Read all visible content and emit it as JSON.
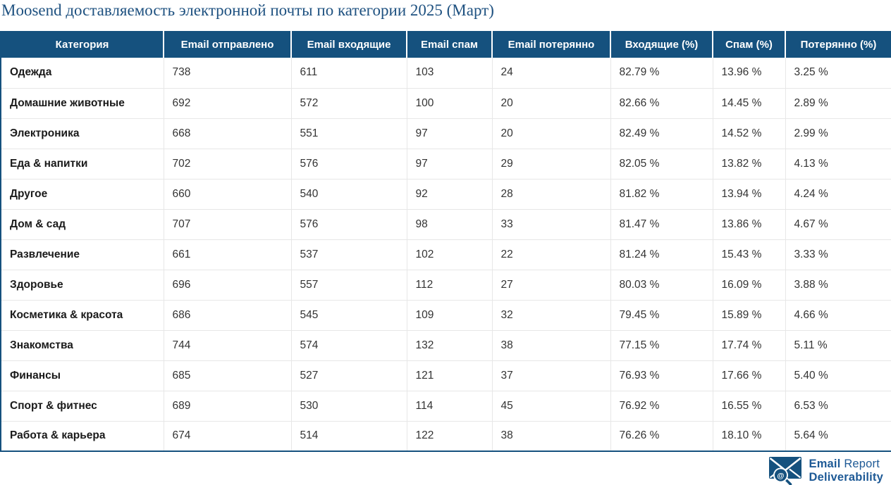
{
  "chart_data": {
    "type": "table",
    "title": "Moosend доставляемость электронной почты по категории 2025 (Март)",
    "columns": [
      "Категория",
      "Email отправлено",
      "Email входящие",
      "Email спам",
      "Email потерянно",
      "Входящие (%)",
      "Спам (%)",
      "Потерянно (%)"
    ],
    "rows": [
      [
        "Одежда",
        "738",
        "611",
        "103",
        "24",
        "82.79 %",
        "13.96 %",
        "3.25 %"
      ],
      [
        "Домашние животные",
        "692",
        "572",
        "100",
        "20",
        "82.66 %",
        "14.45 %",
        "2.89 %"
      ],
      [
        "Электроника",
        "668",
        "551",
        "97",
        "20",
        "82.49 %",
        "14.52 %",
        "2.99 %"
      ],
      [
        "Еда & напитки",
        "702",
        "576",
        "97",
        "29",
        "82.05 %",
        "13.82 %",
        "4.13 %"
      ],
      [
        "Другое",
        "660",
        "540",
        "92",
        "28",
        "81.82 %",
        "13.94 %",
        "4.24 %"
      ],
      [
        "Дом & сад",
        "707",
        "576",
        "98",
        "33",
        "81.47 %",
        "13.86 %",
        "4.67 %"
      ],
      [
        "Развлечение",
        "661",
        "537",
        "102",
        "22",
        "81.24 %",
        "15.43 %",
        "3.33 %"
      ],
      [
        "Здоровье",
        "696",
        "557",
        "112",
        "27",
        "80.03 %",
        "16.09 %",
        "3.88 %"
      ],
      [
        "Косметика & красота",
        "686",
        "545",
        "109",
        "32",
        "79.45 %",
        "15.89 %",
        "4.66 %"
      ],
      [
        "Знакомства",
        "744",
        "574",
        "132",
        "38",
        "77.15 %",
        "17.74 %",
        "5.11 %"
      ],
      [
        "Финансы",
        "685",
        "527",
        "121",
        "37",
        "76.93 %",
        "17.66 %",
        "5.40 %"
      ],
      [
        "Спорт & фитнес",
        "689",
        "530",
        "114",
        "45",
        "76.92 %",
        "16.55 %",
        "6.53 %"
      ],
      [
        "Работа & карьера",
        "674",
        "514",
        "122",
        "38",
        "76.26 %",
        "18.10 %",
        "5.64 %"
      ]
    ]
  },
  "logo": {
    "line1_bold": "Email",
    "line1_light": "Report",
    "line2_bold": "Deliverability",
    "lens_symbol": "@"
  },
  "colors": {
    "header_bg": "#15517E",
    "table_border": "#15517E",
    "row_border": "#E7E7E7",
    "title_text": "#1E5180",
    "logo_blue": "#1E5A96"
  }
}
